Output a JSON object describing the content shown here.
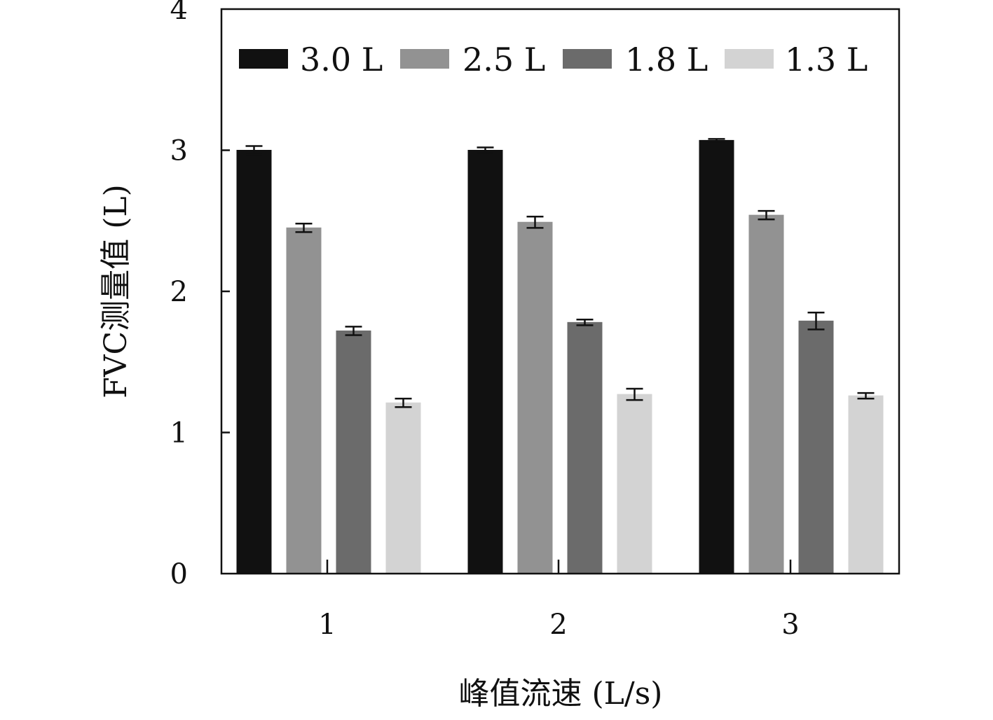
{
  "chart_data": {
    "type": "bar",
    "categories": [
      "1",
      "2",
      "3"
    ],
    "series": [
      {
        "name": "3.0 L",
        "values": [
          3.0,
          3.0,
          3.07
        ],
        "errors": [
          0.03,
          0.02,
          0.01
        ],
        "color": "#111111"
      },
      {
        "name": "2.5 L",
        "values": [
          2.45,
          2.49,
          2.54
        ],
        "errors": [
          0.03,
          0.04,
          0.03
        ],
        "color": "#929292"
      },
      {
        "name": "1.8 L",
        "values": [
          1.72,
          1.78,
          1.79
        ],
        "errors": [
          0.03,
          0.02,
          0.06
        ],
        "color": "#6b6b6b"
      },
      {
        "name": "1.3 L",
        "values": [
          1.21,
          1.27,
          1.26
        ],
        "errors": [
          0.03,
          0.04,
          0.02
        ],
        "color": "#d3d3d3"
      }
    ],
    "xlabel": "峰值流速 (L/s)",
    "ylabel": "FVC测量值 (L)",
    "ylim": [
      0,
      4
    ],
    "yticks": [
      "0",
      "1",
      "2",
      "3",
      "4"
    ],
    "legend_position": "top",
    "grid": false,
    "error_bars": true
  }
}
